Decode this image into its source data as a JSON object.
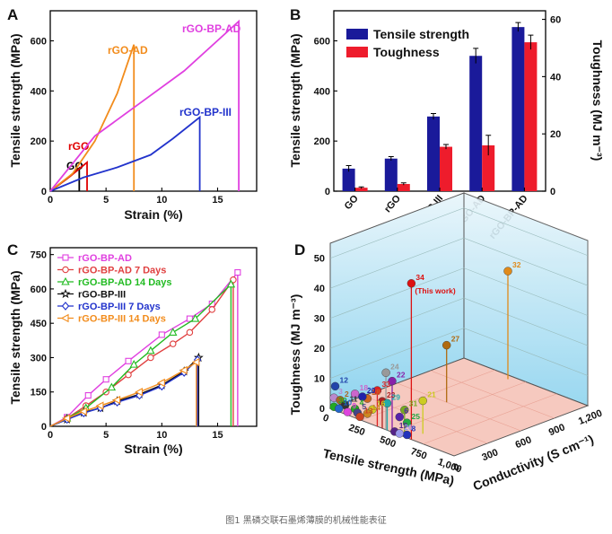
{
  "caption": "图1 黑磷交联石墨烯薄膜的机械性能表征",
  "chart_data": [
    {
      "panel": "A",
      "type": "line",
      "xlabel": "Strain (%)",
      "ylabel": "Tensile strength (MPa)",
      "xlim": [
        0,
        18.5
      ],
      "ylim": [
        0,
        720
      ],
      "xticks": [
        0,
        5,
        10,
        15
      ],
      "yticks": [
        0,
        200,
        400,
        600
      ],
      "series": [
        {
          "name": "GO",
          "color": "#000000",
          "x": [
            0,
            1.5,
            2.6,
            2.6
          ],
          "y": [
            0,
            50,
            92,
            0
          ]
        },
        {
          "name": "rGO",
          "color": "#e00000",
          "x": [
            0,
            1.8,
            3.3,
            3.3
          ],
          "y": [
            0,
            60,
            115,
            0
          ]
        },
        {
          "name": "rGO-AD",
          "color": "#f28c1c",
          "x": [
            0,
            2,
            4,
            6,
            7.5,
            7.5
          ],
          "y": [
            0,
            70,
            200,
            390,
            585,
            0
          ]
        },
        {
          "name": "rGO-BP-III",
          "color": "#2233cc",
          "x": [
            0,
            3,
            6,
            9,
            11,
            13.4,
            13.4
          ],
          "y": [
            0,
            55,
            95,
            145,
            210,
            295,
            0
          ]
        },
        {
          "name": "rGO-BP-AD",
          "color": "#e040e0",
          "x": [
            0,
            2,
            4,
            8,
            12,
            16.9,
            16.9
          ],
          "y": [
            0,
            110,
            220,
            350,
            480,
            678,
            0
          ]
        }
      ]
    },
    {
      "panel": "B",
      "type": "bar",
      "categories": [
        "GO",
        "rGO",
        "rGO-BP-III",
        "rGO-AD",
        "rGO-BP-AD"
      ],
      "ylabel": "Tensile strength (MPa)",
      "ylabel2": "Toughness (MJ m⁻³)",
      "ylim": [
        0,
        720
      ],
      "ylim2": [
        0,
        63
      ],
      "yticks": [
        0,
        200,
        400,
        600
      ],
      "yticks2": [
        0,
        20,
        40,
        60
      ],
      "series": [
        {
          "name": "Tensile strength",
          "color": "#1a1a9a",
          "axis": "left",
          "values": [
            90,
            130,
            298,
            540,
            655
          ],
          "errors": [
            12,
            8,
            12,
            30,
            18
          ]
        },
        {
          "name": "Toughness",
          "color": "#ee1c2c",
          "axis": "right",
          "values": [
            1.2,
            2.5,
            15.5,
            16,
            52
          ],
          "errors": [
            0.3,
            0.4,
            0.8,
            3.5,
            2.5
          ]
        }
      ],
      "legend": "top-left"
    },
    {
      "panel": "C",
      "type": "line",
      "xlabel": "Strain (%)",
      "ylabel": "Tensile strength (MPa)",
      "xlim": [
        0,
        18.5
      ],
      "ylim": [
        0,
        780
      ],
      "xticks": [
        0,
        5,
        10,
        15
      ],
      "yticks": [
        0,
        150,
        300,
        450,
        600,
        750
      ],
      "legend": "top-left",
      "series": [
        {
          "name": "rGO-BP-AD",
          "color": "#e040e0",
          "marker": "square",
          "x": [
            0,
            1.5,
            3.4,
            5,
            7,
            10,
            12.5,
            14.5,
            16.8,
            16.8
          ],
          "y": [
            0,
            40,
            135,
            205,
            285,
            400,
            470,
            535,
            672,
            0
          ]
        },
        {
          "name": "rGO-BP-AD 7 Days",
          "color": "#e04040",
          "marker": "circle",
          "x": [
            0,
            1.5,
            3.2,
            5,
            7,
            9,
            11,
            12.5,
            14.5,
            16.4,
            16.4
          ],
          "y": [
            0,
            35,
            90,
            150,
            225,
            300,
            360,
            410,
            510,
            640,
            0
          ]
        },
        {
          "name": "rGO-BP-AD 14 Days",
          "color": "#22bb22",
          "marker": "triangle",
          "x": [
            0,
            1.5,
            3.2,
            5.5,
            7.5,
            9,
            11,
            13,
            16.2,
            16.2
          ],
          "y": [
            0,
            35,
            80,
            170,
            270,
            330,
            410,
            470,
            620,
            0
          ]
        },
        {
          "name": "rGO-BP-III",
          "color": "#111111",
          "marker": "star",
          "x": [
            0,
            1.5,
            3,
            4.5,
            6,
            8,
            10,
            12,
            13.3,
            13.3
          ],
          "y": [
            0,
            30,
            60,
            80,
            110,
            140,
            180,
            240,
            300,
            0
          ]
        },
        {
          "name": "rGO-BP-III 7 Days",
          "color": "#2233cc",
          "marker": "diamond",
          "x": [
            0,
            1.5,
            3,
            4.5,
            6,
            8,
            10,
            12,
            13.2,
            13.2
          ],
          "y": [
            0,
            30,
            58,
            80,
            105,
            135,
            175,
            235,
            290,
            0
          ]
        },
        {
          "name": "rGO-BP-III 14 Days",
          "color": "#f28c1c",
          "marker": "tri-left",
          "x": [
            0,
            1.5,
            3,
            4.5,
            6,
            8,
            10,
            12,
            13.1,
            13.1
          ],
          "y": [
            0,
            35,
            65,
            90,
            115,
            150,
            190,
            245,
            280,
            0
          ]
        }
      ]
    },
    {
      "panel": "D",
      "type": "scatter",
      "xlabel": "Tensile strength (MPa)",
      "ylabel": "Toughness (MJ m⁻³)",
      "zlabel": "Conductivity (S cm⁻¹)",
      "x_ticks": [
        "0",
        "250",
        "500",
        "750",
        "1,000"
      ],
      "z_ticks": [
        "0",
        "300",
        "600",
        "900",
        "1,200"
      ],
      "y_ticks": [
        "0",
        "10",
        "20",
        "30",
        "40",
        "50"
      ],
      "highlight_annotation": "(This work)",
      "points": [
        {
          "label": "34",
          "color": "#dd1111",
          "strength": 655,
          "conductivity": 0,
          "toughness": 52
        },
        {
          "label": "32",
          "color": "#e08a1a",
          "strength": 400,
          "conductivity": 1150,
          "toughness": 36
        },
        {
          "label": "27",
          "color": "#b06a10",
          "strength": 400,
          "conductivity": 600,
          "toughness": 19
        },
        {
          "label": "21",
          "color": "#cccc22",
          "strength": 640,
          "conductivity": 120,
          "toughness": 11
        },
        {
          "label": "24",
          "color": "#999999",
          "strength": 450,
          "conductivity": 0,
          "toughness": 19
        },
        {
          "label": "22",
          "color": "#8822aa",
          "strength": 500,
          "conductivity": 0,
          "toughness": 17
        },
        {
          "label": "33",
          "color": "#dd2222",
          "strength": 380,
          "conductivity": 0,
          "toughness": 12
        },
        {
          "label": "23",
          "color": "#aa2222",
          "strength": 420,
          "conductivity": 0,
          "toughness": 9
        },
        {
          "label": "31",
          "color": "#77aa22",
          "strength": 600,
          "conductivity": 0,
          "toughness": 9
        },
        {
          "label": "29",
          "color": "#22aaaa",
          "strength": 460,
          "conductivity": 0,
          "toughness": 9
        },
        {
          "label": "28",
          "color": "#cc6622",
          "strength": 300,
          "conductivity": 0,
          "toughness": 8
        },
        {
          "label": "20",
          "color": "#2222aa",
          "strength": 260,
          "conductivity": 0,
          "toughness": 8
        },
        {
          "label": "18",
          "color": "#cc66cc",
          "strength": 200,
          "conductivity": 0,
          "toughness": 8
        },
        {
          "label": "12",
          "color": "#2244aa",
          "strength": 40,
          "conductivity": 0,
          "toughness": 8
        },
        {
          "label": "6",
          "color": "#5522aa",
          "strength": 560,
          "conductivity": 0,
          "toughness": 6
        },
        {
          "label": "25",
          "color": "#22aa44",
          "strength": 620,
          "conductivity": 0,
          "toughness": 5
        },
        {
          "label": "16",
          "color": "#d0d022",
          "strength": 340,
          "conductivity": 0,
          "toughness": 5
        },
        {
          "label": "14",
          "color": "#cc8822",
          "strength": 300,
          "conductivity": 0,
          "toughness": 3
        },
        {
          "label": "3",
          "color": "#bb88cc",
          "strength": 30,
          "conductivity": 0,
          "toughness": 4
        },
        {
          "label": "2",
          "color": "#aa6622",
          "strength": 80,
          "conductivity": 0,
          "toughness": 4
        },
        {
          "label": "11",
          "color": "#333333",
          "strength": 120,
          "conductivity": 0,
          "toughness": 3
        },
        {
          "label": "4",
          "color": "#22aa22",
          "strength": 200,
          "conductivity": 0,
          "toughness": 3
        },
        {
          "label": "5",
          "color": "#444488",
          "strength": 220,
          "conductivity": 0,
          "toughness": 2
        },
        {
          "label": "13",
          "color": "#cc4422",
          "strength": 240,
          "conductivity": 0,
          "toughness": 1
        },
        {
          "label": "30",
          "color": "#22aa22",
          "strength": 30,
          "conductivity": 0,
          "toughness": 1
        },
        {
          "label": "10",
          "color": "#2266cc",
          "strength": 70,
          "conductivity": 0,
          "toughness": 1
        },
        {
          "label": "9",
          "color": "#dd44dd",
          "strength": 140,
          "conductivity": 0,
          "toughness": 1
        },
        {
          "label": "8",
          "color": "#2233bb",
          "strength": 620,
          "conductivity": 0,
          "toughness": 1
        },
        {
          "label": "19",
          "color": "#552288",
          "strength": 520,
          "conductivity": 0,
          "toughness": 0.5
        },
        {
          "label": "26",
          "color": "#9999ee",
          "strength": 560,
          "conductivity": 0,
          "toughness": 0.5
        }
      ]
    }
  ]
}
